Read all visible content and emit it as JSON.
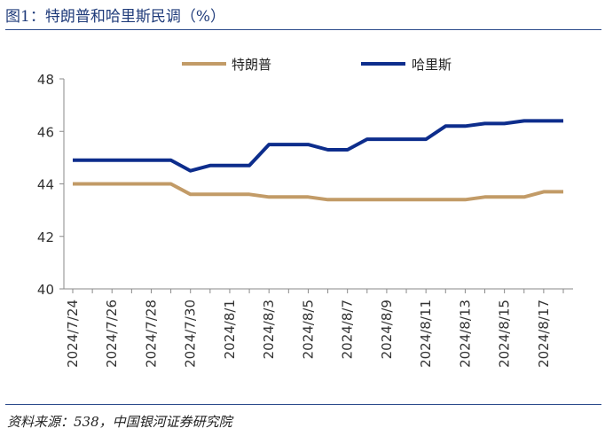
{
  "title": "图1：特朗普和哈里斯民调（%）",
  "source": "资料来源：538，中国银河证券研究院",
  "chart_data": {
    "type": "line",
    "x": [
      "2024/7/24",
      "2024/7/25",
      "2024/7/26",
      "2024/7/27",
      "2024/7/28",
      "2024/7/29",
      "2024/7/30",
      "2024/7/31",
      "2024/8/1",
      "2024/8/2",
      "2024/8/3",
      "2024/8/4",
      "2024/8/5",
      "2024/8/6",
      "2024/8/7",
      "2024/8/8",
      "2024/8/9",
      "2024/8/10",
      "2024/8/11",
      "2024/8/12",
      "2024/8/13",
      "2024/8/14",
      "2024/8/15",
      "2024/8/16",
      "2024/8/17",
      "2024/8/18"
    ],
    "x_tick_labels": [
      "2024/7/24",
      "2024/7/26",
      "2024/7/28",
      "2024/7/30",
      "2024/8/1",
      "2024/8/3",
      "2024/8/5",
      "2024/8/7",
      "2024/8/9",
      "2024/8/11",
      "2024/8/13",
      "2024/8/15",
      "2024/8/17"
    ],
    "series": [
      {
        "name": "特朗普",
        "color": "#c29b67",
        "values": [
          44.0,
          44.0,
          44.0,
          44.0,
          44.0,
          44.0,
          43.6,
          43.6,
          43.6,
          43.6,
          43.5,
          43.5,
          43.5,
          43.4,
          43.4,
          43.4,
          43.4,
          43.4,
          43.4,
          43.4,
          43.4,
          43.5,
          43.5,
          43.5,
          43.7,
          43.7
        ]
      },
      {
        "name": "哈里斯",
        "color": "#0d2d8c",
        "values": [
          44.9,
          44.9,
          44.9,
          44.9,
          44.9,
          44.9,
          44.5,
          44.7,
          44.7,
          44.7,
          45.5,
          45.5,
          45.5,
          45.3,
          45.3,
          45.7,
          45.7,
          45.7,
          45.7,
          46.2,
          46.2,
          46.3,
          46.3,
          46.4,
          46.4,
          46.4
        ]
      }
    ],
    "ylim": [
      40,
      48
    ],
    "yticks": [
      40,
      42,
      44,
      46,
      48
    ],
    "xlabel": "",
    "ylabel": "",
    "grid": false,
    "legend_position": "top-center"
  }
}
